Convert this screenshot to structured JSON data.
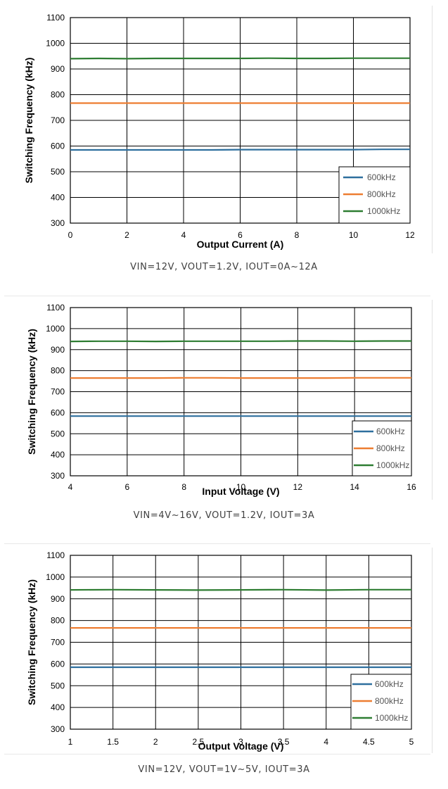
{
  "chart_data": [
    {
      "type": "line",
      "ylabel": "Switching Frequency (kHz)",
      "xlabel": "Output Current (A)",
      "caption": "VIN=12V, VOUT=1.2V, IOUT=0A~12A",
      "xlim": [
        0,
        12
      ],
      "ylim": [
        300,
        1100
      ],
      "xticks": [
        0,
        2,
        4,
        6,
        8,
        10,
        12
      ],
      "xtick_labels": [
        "0",
        "2",
        "4",
        "6",
        "8",
        "10",
        "12"
      ],
      "yticks": [
        300,
        400,
        500,
        600,
        700,
        800,
        900,
        1000,
        1100
      ],
      "ytick_labels": [
        "300",
        "400",
        "500",
        "600",
        "700",
        "800",
        "900",
        "1000",
        "1100"
      ],
      "grid": true,
      "legend_position": "bottom-right",
      "x": [
        0,
        1,
        2,
        3,
        4,
        5,
        6,
        7,
        8,
        9,
        10,
        11,
        12
      ],
      "series": [
        {
          "name": "600kHz",
          "color": "#2e6f9e",
          "values": [
            585,
            585,
            585,
            585,
            585,
            585,
            586,
            586,
            586,
            586,
            586,
            587,
            587
          ]
        },
        {
          "name": "800kHz",
          "color": "#ed7d31",
          "values": [
            767,
            767,
            767,
            767,
            767,
            767,
            767,
            767,
            767,
            767,
            767,
            767,
            767
          ]
        },
        {
          "name": "1000kHz",
          "color": "#2e7d32",
          "values": [
            940,
            941,
            940,
            941,
            941,
            941,
            941,
            942,
            941,
            941,
            942,
            942,
            942
          ]
        }
      ]
    },
    {
      "type": "line",
      "ylabel": "Switching Frequency (kHz)",
      "xlabel": "Input Voltage (V)",
      "caption": "VIN=4V~16V, VOUT=1.2V, IOUT=3A",
      "xlim": [
        4,
        16
      ],
      "ylim": [
        300,
        1100
      ],
      "xticks": [
        4,
        6,
        8,
        10,
        12,
        14,
        16
      ],
      "xtick_labels": [
        "4",
        "6",
        "8",
        "10",
        "12",
        "14",
        "16"
      ],
      "yticks": [
        300,
        400,
        500,
        600,
        700,
        800,
        900,
        1000,
        1100
      ],
      "ytick_labels": [
        "300",
        "400",
        "500",
        "600",
        "700",
        "800",
        "900",
        "1000",
        "1100"
      ],
      "grid": true,
      "legend_position": "bottom-right",
      "x": [
        4,
        5,
        6,
        7,
        8,
        9,
        10,
        11,
        12,
        13,
        14,
        15,
        16
      ],
      "series": [
        {
          "name": "600kHz",
          "color": "#2e6f9e",
          "values": [
            584,
            584,
            584,
            584,
            584,
            584,
            584,
            584,
            584,
            584,
            584,
            584,
            584
          ]
        },
        {
          "name": "800kHz",
          "color": "#ed7d31",
          "values": [
            765,
            765,
            765,
            765,
            766,
            766,
            765,
            765,
            765,
            765,
            766,
            766,
            766
          ]
        },
        {
          "name": "1000kHz",
          "color": "#2e7d32",
          "values": [
            939,
            940,
            940,
            939,
            940,
            940,
            940,
            940,
            941,
            941,
            940,
            941,
            941
          ]
        }
      ]
    },
    {
      "type": "line",
      "ylabel": "Switching Frequency (kHz)",
      "xlabel": "Output Voltage (V)",
      "caption": "VIN=12V, VOUT=1V~5V, IOUT=3A",
      "xlim": [
        1,
        5
      ],
      "ylim": [
        300,
        1100
      ],
      "xticks": [
        1,
        1.5,
        2,
        2.5,
        3,
        3.5,
        4,
        4.5,
        5
      ],
      "xtick_labels": [
        "1",
        "1.5",
        "2",
        "2.5",
        "3",
        "3.5",
        "4",
        "4.5",
        "5"
      ],
      "yticks": [
        300,
        400,
        500,
        600,
        700,
        800,
        900,
        1000,
        1100
      ],
      "ytick_labels": [
        "300",
        "400",
        "500",
        "600",
        "700",
        "800",
        "900",
        "1000",
        "1100"
      ],
      "grid": true,
      "legend_position": "bottom-right",
      "x": [
        1,
        1.5,
        2,
        2.5,
        3,
        3.5,
        4,
        4.5,
        5
      ],
      "series": [
        {
          "name": "600kHz",
          "color": "#2e6f9e",
          "values": [
            585,
            585,
            585,
            585,
            585,
            585,
            585,
            585,
            585
          ]
        },
        {
          "name": "800kHz",
          "color": "#ed7d31",
          "values": [
            766,
            766,
            766,
            766,
            766,
            766,
            766,
            766,
            766
          ]
        },
        {
          "name": "1000kHz",
          "color": "#2e7d32",
          "values": [
            941,
            942,
            941,
            940,
            941,
            942,
            940,
            942,
            942
          ]
        }
      ]
    }
  ]
}
